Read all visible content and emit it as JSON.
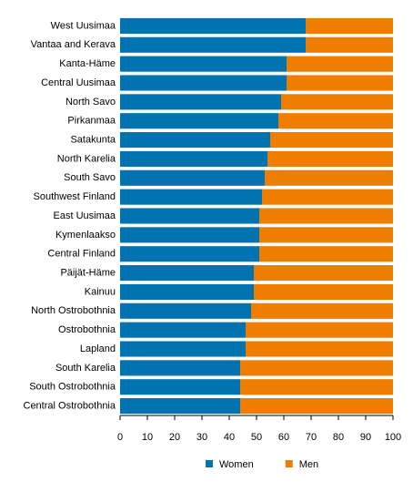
{
  "chart_data": {
    "type": "stacked-barh",
    "categories": [
      "West Uusimaa",
      "Vantaa and Kerava",
      "Kanta-Häme",
      "Central Uusimaa",
      "North Savo",
      "Pirkanmaa",
      "Satakunta",
      "North Karelia",
      "South Savo",
      "Southwest Finland",
      "East Uusimaa",
      "Kymenlaakso",
      "Central Finland",
      "Päijät-Häme",
      "Kainuu",
      "North Ostrobothnia",
      "Ostrobothnia",
      "Lapland",
      "South Karelia",
      "South Ostrobothnia",
      "Central Ostrobothnia"
    ],
    "series": [
      {
        "name": "Women",
        "color": "#0073b0",
        "values": [
          68,
          68,
          61,
          61,
          59,
          58,
          55,
          54,
          53,
          52,
          51,
          51,
          51,
          49,
          49,
          48,
          46,
          46,
          44,
          44,
          44
        ]
      },
      {
        "name": "Men",
        "color": "#ee7d00",
        "values": [
          32,
          32,
          39,
          39,
          41,
          42,
          45,
          46,
          47,
          48,
          49,
          49,
          49,
          51,
          51,
          52,
          54,
          54,
          56,
          56,
          56
        ]
      }
    ],
    "xlim": [
      0,
      100
    ],
    "xticks": [
      0,
      10,
      20,
      30,
      40,
      50,
      60,
      70,
      80,
      90,
      100
    ],
    "legend": "bottom"
  }
}
